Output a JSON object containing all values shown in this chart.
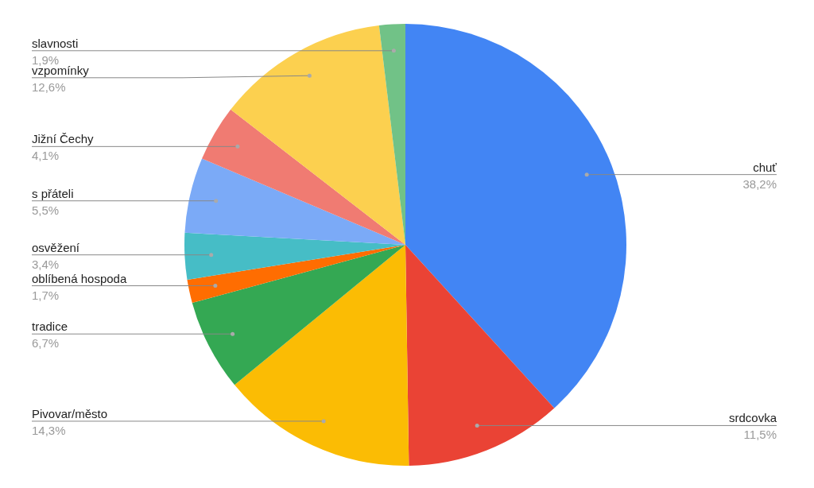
{
  "chart_data": {
    "type": "pie",
    "categories": [
      "chuť",
      "srdcovka",
      "Pivovar/město",
      "tradice",
      "oblíbená hospoda",
      "osvěžení",
      "s přáteli",
      "Jižní Čechy",
      "vzpomínky",
      "slavnosti"
    ],
    "values": [
      38.2,
      11.5,
      14.3,
      6.7,
      1.7,
      3.4,
      5.5,
      4.1,
      12.6,
      1.9
    ],
    "colors": [
      "#4285f4",
      "#ea4335",
      "#fbbc04",
      "#34a853",
      "#ff6d01",
      "#46bdc6",
      "#7baaf7",
      "#f07b72",
      "#fcd04f",
      "#71c287"
    ],
    "value_labels": [
      "38,2%",
      "11,5%",
      "14,3%",
      "6,7%",
      "1,7%",
      "3,4%",
      "5,5%",
      "4,1%",
      "12,6%",
      "1,9%"
    ],
    "legend": false
  }
}
